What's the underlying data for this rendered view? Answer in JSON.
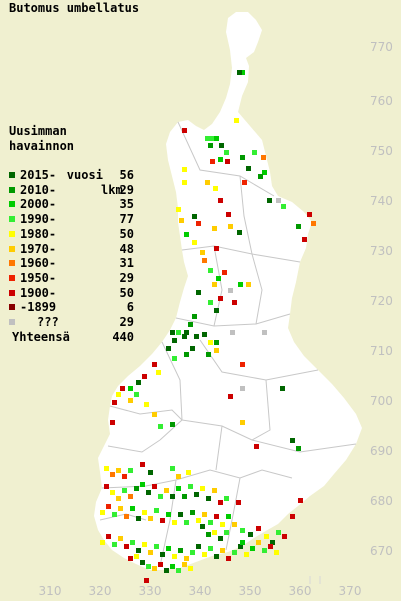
{
  "title": "Butomus umbellatus",
  "legend": {
    "heading_lines": [
      "Uusimman",
      "havainnon",
      "vuosi"
    ],
    "count_heading": "lkm",
    "items": [
      {
        "label": "2015-",
        "count": "56",
        "color": "#006600"
      },
      {
        "label": "2010-",
        "count": "29",
        "color": "#009900"
      },
      {
        "label": "2000-",
        "count": "35",
        "color": "#00cc00"
      },
      {
        "label": "1990-",
        "count": "77",
        "color": "#33ee33"
      },
      {
        "label": "1980-",
        "count": "50",
        "color": "#ffff00"
      },
      {
        "label": "1970-",
        "count": "48",
        "color": "#ffcc00"
      },
      {
        "label": "1960-",
        "count": "31",
        "color": "#ff7700"
      },
      {
        "label": "1950-",
        "count": "29",
        "color": "#ee2200"
      },
      {
        "label": "1900-",
        "count": "50",
        "color": "#cc0000"
      },
      {
        "label": "-1899",
        "count": "6",
        "color": "#880000"
      },
      {
        "label": "???",
        "count": "29",
        "color": "#c0c0c0"
      }
    ],
    "total_label": "Yhteensä",
    "total_count": "440"
  },
  "grid_y_labels": [
    "770",
    "760",
    "750",
    "740",
    "730",
    "720",
    "710",
    "700",
    "690",
    "680",
    "670"
  ],
  "grid_x_labels": [
    "310",
    "320",
    "330",
    "340",
    "350",
    "360",
    "370"
  ],
  "colors": {
    "background": "#f0f0d0",
    "land": "#ffffff",
    "borders": "#c8c8c8",
    "grid_label": "#c0c0c0"
  }
}
